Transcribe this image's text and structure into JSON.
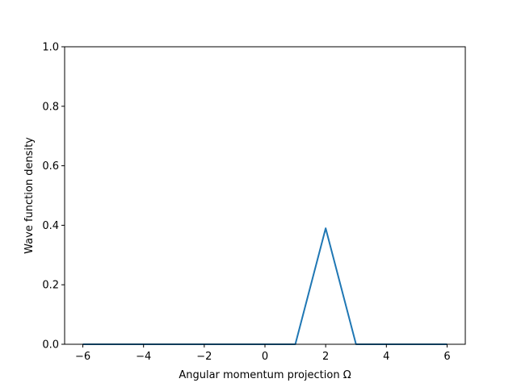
{
  "chart_data": {
    "type": "line",
    "xlabel": "Angular momentum projection Ω",
    "ylabel": "Wave function density",
    "xlim": [
      -6.6,
      6.6
    ],
    "ylim": [
      0,
      1.0
    ],
    "grid": false,
    "x_ticks": [
      -6,
      -4,
      -2,
      0,
      2,
      4,
      6
    ],
    "x_tick_labels": [
      "−6",
      "−4",
      "−2",
      "0",
      "2",
      "4",
      "6"
    ],
    "y_ticks": [
      0.0,
      0.2,
      0.4,
      0.6,
      0.8,
      1.0
    ],
    "y_tick_labels": [
      "0.0",
      "0.2",
      "0.4",
      "0.6",
      "0.8",
      "1.0"
    ],
    "series": [
      {
        "color": "#1f77b4",
        "x": [
          -6,
          -5,
          -4,
          -3,
          -2,
          -1,
          0,
          1,
          2,
          3,
          4,
          5,
          6
        ],
        "values": [
          0,
          0,
          0,
          0,
          0,
          0,
          0,
          0,
          0.39,
          0,
          0,
          0,
          0
        ]
      }
    ]
  }
}
